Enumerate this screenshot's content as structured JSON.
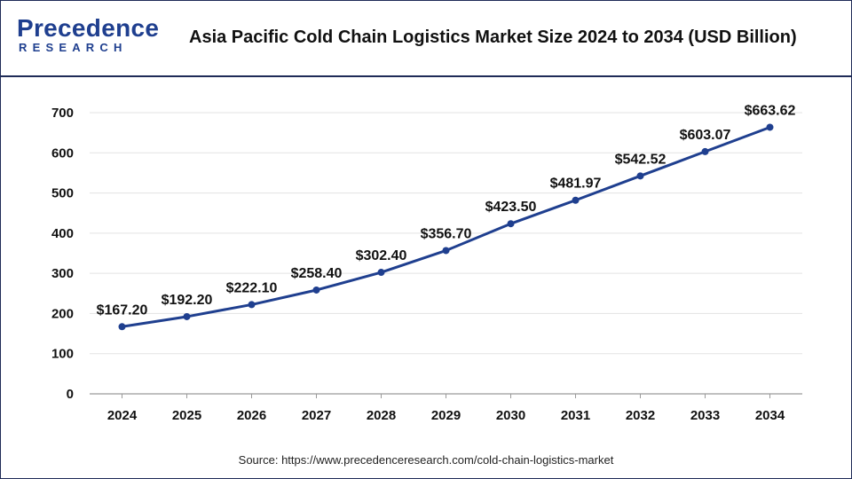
{
  "logo": {
    "word": "Precedence",
    "sub": "RESEARCH"
  },
  "title": "Asia Pacific Cold Chain Logistics Market Size 2024 to 2034 (USD Billion)",
  "source": "Source: https://www.precedenceresearch.com/cold-chain-logistics-market",
  "colors": {
    "line": "#1f3f8f",
    "point": "#1f3f8f",
    "grid": "#e3e3e3",
    "border": "#1f2b57"
  },
  "chart_data": {
    "type": "line",
    "categories": [
      "2024",
      "2025",
      "2026",
      "2027",
      "2028",
      "2029",
      "2030",
      "2031",
      "2032",
      "2033",
      "2034"
    ],
    "values": [
      167.2,
      192.2,
      222.1,
      258.4,
      302.4,
      356.7,
      423.5,
      481.97,
      542.52,
      603.07,
      663.62
    ],
    "value_labels": [
      "$167.20",
      "$192.20",
      "$222.10",
      "$258.40",
      "$302.40",
      "$356.70",
      "$423.50",
      "$481.97",
      "$542.52",
      "$603.07",
      "$663.62"
    ],
    "yticks": [
      0,
      100,
      200,
      300,
      400,
      500,
      600,
      700
    ],
    "ylim": [
      0,
      700
    ],
    "grid": true,
    "legend": "none"
  }
}
